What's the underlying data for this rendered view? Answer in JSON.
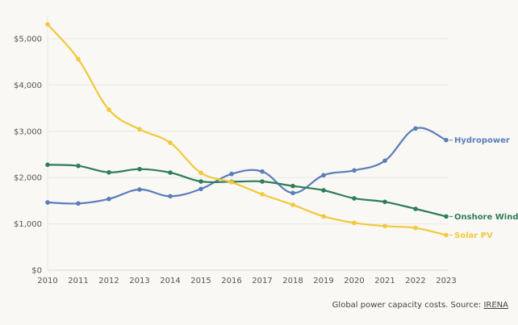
{
  "chart_data": {
    "type": "line",
    "title": "",
    "xlabel": "",
    "ylabel": "",
    "x": [
      2010,
      2011,
      2012,
      2013,
      2014,
      2015,
      2016,
      2017,
      2018,
      2019,
      2020,
      2021,
      2022,
      2023
    ],
    "ylim": [
      0,
      5000
    ],
    "yticks": [
      0,
      1000,
      2000,
      3000,
      4000,
      5000
    ],
    "ytick_labels": [
      "$0",
      "$1,000",
      "$2,000",
      "$3,000",
      "$4,000",
      "$5,000"
    ],
    "grid": true,
    "legend": "inline-right",
    "series": [
      {
        "name": "Hydropower",
        "color": "#5b7db8",
        "values": [
          1463,
          1441,
          1538,
          1742,
          1597,
          1754,
          2078,
          2131,
          1667,
          2050,
          2155,
          2364,
          3061,
          2810
        ]
      },
      {
        "name": "Onshore Wind",
        "color": "#2f7d59",
        "values": [
          2277,
          2253,
          2113,
          2183,
          2108,
          1916,
          1911,
          1916,
          1817,
          1725,
          1551,
          1476,
          1324,
          1160
        ]
      },
      {
        "name": "Solar PV",
        "color": "#f2c83c",
        "values": [
          5310,
          4559,
          3467,
          3043,
          2753,
          2103,
          1900,
          1638,
          1411,
          1162,
          1022,
          953,
          912,
          758
        ]
      }
    ]
  },
  "footer": {
    "caption": "Global power capacity costs. Source: ",
    "source_link": "IRENA"
  }
}
